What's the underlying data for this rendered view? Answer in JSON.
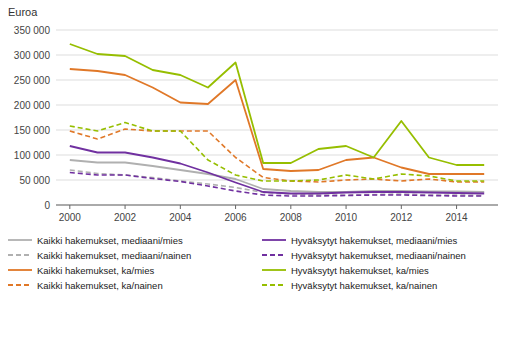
{
  "chart_data": {
    "type": "line",
    "y_label": "Euroa",
    "x": [
      2000,
      2001,
      2002,
      2003,
      2004,
      2005,
      2006,
      2007,
      2008,
      2009,
      2010,
      2011,
      2012,
      2013,
      2014,
      2015
    ],
    "xlim": [
      1999.5,
      2015.5
    ],
    "xticks": [
      2000,
      2002,
      2004,
      2006,
      2008,
      2010,
      2012,
      2014
    ],
    "ylim": [
      0,
      350000
    ],
    "yticks": [
      0,
      {
        "value": 50000,
        "label": "50 000"
      },
      {
        "value": 100000,
        "label": "100 000"
      },
      {
        "value": 150000,
        "label": "150 000"
      },
      {
        "value": 200000,
        "label": "200 000"
      },
      {
        "value": 250000,
        "label": "250 000"
      },
      {
        "value": 300000,
        "label": "300 000"
      },
      {
        "value": 350000,
        "label": "350 000"
      }
    ],
    "grid": true,
    "legend": "bottom",
    "series": [
      {
        "name": "Kaikki hakemukset, mediaani/mies",
        "color": "#b0b0b0",
        "line_style": "solid",
        "values": [
          90000,
          85000,
          85000,
          78000,
          70000,
          62000,
          52000,
          32000,
          28000,
          26000,
          26000,
          28000,
          28000,
          27000,
          27000,
          26000
        ]
      },
      {
        "name": "Kaikki hakemukset, mediaani/nainen",
        "color": "#b0b0b0",
        "line_style": "dashed",
        "values": [
          70000,
          63000,
          60000,
          55000,
          48000,
          42000,
          35000,
          25000,
          22000,
          20000,
          20000,
          21000,
          22000,
          20000,
          20000,
          19000
        ]
      },
      {
        "name": "Kaikki hakemukset, ka/mies",
        "color": "#e07828",
        "line_style": "solid",
        "values": [
          272000,
          268000,
          260000,
          235000,
          205000,
          202000,
          250000,
          72000,
          68000,
          70000,
          90000,
          95000,
          75000,
          62000,
          62000,
          62000
        ]
      },
      {
        "name": "Kaikki hakemukset, ka/nainen",
        "color": "#e07828",
        "line_style": "dashed",
        "values": [
          148000,
          132000,
          152000,
          148000,
          148000,
          148000,
          95000,
          55000,
          48000,
          46000,
          50000,
          52000,
          48000,
          52000,
          46000,
          46000
        ]
      },
      {
        "name": "Hyväksytyt hakemukset, mediaani/mies",
        "color": "#7030a0",
        "line_style": "solid",
        "values": [
          118000,
          105000,
          105000,
          95000,
          83000,
          65000,
          45000,
          26000,
          23000,
          23000,
          25000,
          26000,
          26000,
          25000,
          24000,
          23000
        ]
      },
      {
        "name": "Hyväksytyt hakemukset, mediaani/nainen",
        "color": "#7030a0",
        "line_style": "dashed",
        "values": [
          65000,
          60000,
          60000,
          53000,
          47000,
          38000,
          28000,
          20000,
          18000,
          18000,
          19000,
          20000,
          20000,
          19000,
          18000,
          18000
        ]
      },
      {
        "name": "Hyväksytyt hakemukset, ka/mies",
        "color": "#96be00",
        "line_style": "solid",
        "values": [
          322000,
          302000,
          298000,
          270000,
          260000,
          235000,
          285000,
          84000,
          84000,
          112000,
          118000,
          95000,
          168000,
          95000,
          80000,
          80000
        ]
      },
      {
        "name": "Hyväksytyt hakemukset, ka/nainen",
        "color": "#96be00",
        "line_style": "dashed",
        "values": [
          158000,
          148000,
          165000,
          148000,
          148000,
          90000,
          60000,
          48000,
          48000,
          50000,
          60000,
          52000,
          62000,
          58000,
          48000,
          48000
        ]
      }
    ]
  }
}
